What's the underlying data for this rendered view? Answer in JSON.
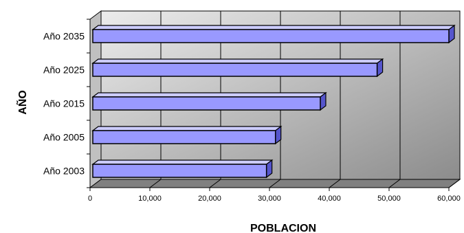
{
  "chart_data": {
    "type": "bar",
    "orientation": "horizontal",
    "style": "3d",
    "title": "",
    "xlabel": "POBLACION",
    "ylabel": "AÑO",
    "categories": [
      "Año 2003",
      "Año 2005",
      "Año 2015",
      "Año 2025",
      "Año 2035"
    ],
    "values": [
      29500,
      31000,
      38500,
      48000,
      60000
    ],
    "xlim": [
      0,
      60000
    ],
    "xticks": [
      0,
      10000,
      20000,
      30000,
      40000,
      50000,
      60000
    ],
    "xtick_labels": [
      "0",
      "10,000",
      "20,000",
      "30,000",
      "40,000",
      "50,000",
      "60,000"
    ],
    "grid": true,
    "legend": "none",
    "colors": {
      "bar_front": "#9999FF",
      "bar_top": "#CCCCFF",
      "bar_side": "#5555CC",
      "plot_back_light": "#ECECEC",
      "plot_back_dark": "#8C8C8C",
      "wall": "#C0C0C0",
      "floor": "#808080"
    }
  }
}
